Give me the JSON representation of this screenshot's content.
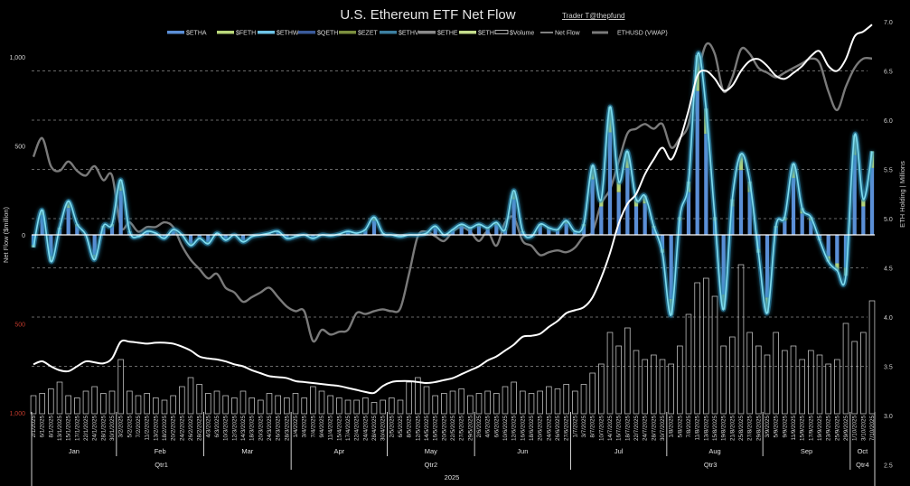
{
  "chart_data": {
    "type": "bar",
    "title": "U.S. Ethereum ETF Net Flow",
    "credit": "Trader T@thepfund",
    "legend": [
      {
        "label": "$ETHA",
        "color": "#5b8fd6",
        "kind": "bar"
      },
      {
        "label": "$FETH",
        "color": "#b9d77a",
        "kind": "bar"
      },
      {
        "label": "$ETHW",
        "color": "#6ec3e6",
        "kind": "bar"
      },
      {
        "label": "$QETH",
        "color": "#3a5a9a",
        "kind": "bar"
      },
      {
        "label": "$EZET",
        "color": "#7b8f3e",
        "kind": "bar"
      },
      {
        "label": "$ETHV",
        "color": "#3d7fa0",
        "kind": "bar"
      },
      {
        "label": "$ETHE",
        "color": "#8a8a8a",
        "kind": "bar"
      },
      {
        "label": "$ETH",
        "color": "#c4dc8c",
        "kind": "bar"
      },
      {
        "label": "$Volume",
        "color": "#dddddd",
        "kind": "hollow"
      },
      {
        "label": "Net Flow",
        "color": "#ffffff",
        "kind": "line"
      },
      {
        "label": "ETHUSD (VWAP)",
        "color": "#7a7a7a",
        "kind": "thickline"
      }
    ],
    "y_left": {
      "label": "Net Flow ($million)",
      "range": [
        -1000,
        1000
      ],
      "ticks": [
        {
          "value": 1000,
          "label": "1,000",
          "negative": false
        },
        {
          "value": 500,
          "label": "500",
          "negative": false
        },
        {
          "value": 0,
          "label": "0",
          "negative": false
        },
        {
          "value": -500,
          "label": "500",
          "negative": true
        },
        {
          "value": -1000,
          "label": "1,000",
          "negative": true
        }
      ]
    },
    "y_right": {
      "label": "ETH Holding | Millions",
      "range": [
        2.5,
        7.0
      ],
      "ticks": [
        "7.0",
        "6.5",
        "6.0",
        "5.5",
        "5.0",
        "4.5",
        "4.0",
        "3.5",
        "3.0",
        "2.5"
      ],
      "gridlines": [
        6.5,
        6.0,
        5.5,
        5.0,
        4.5,
        4.0,
        3.5
      ]
    },
    "colors": {
      "negative_tick": "#c0392b",
      "net_flow_glow": "#7fdcf0",
      "bar_main": "#5b8fd6",
      "bar_secondary": "#b9d77a"
    },
    "year": "2025",
    "months": [
      {
        "name": "Jan",
        "quarter": "Qtr1",
        "dates": [
          "2/1/2025",
          "6/1/2025",
          "8/1/2025",
          "13/1/2025",
          "15/1/2025",
          "17/1/2025",
          "22/1/2025",
          "24/1/2025",
          "28/1/2025",
          "30/1/2025"
        ],
        "net_flow": [
          -70,
          140,
          -150,
          40,
          190,
          60,
          0,
          -140,
          50,
          60
        ],
        "holdings": [
          3.52,
          3.55,
          3.5,
          3.46,
          3.45,
          3.5,
          3.55,
          3.54,
          3.53,
          3.58
        ],
        "ethusd": [
          3450,
          3650,
          3350,
          3300,
          3400,
          3300,
          3250,
          3350,
          3200,
          3250
        ],
        "volume": [
          400,
          450,
          550,
          700,
          400,
          350,
          500,
          600,
          450,
          500
        ]
      },
      {
        "name": "Feb",
        "quarter": "Qtr1",
        "dates": [
          "3/2/2025",
          "5/2/2025",
          "7/2/2025",
          "11/2/2025",
          "13/2/2025",
          "18/2/2025",
          "20/2/2025",
          "24/2/2025",
          "26/2/2025",
          "28/2/2025"
        ],
        "net_flow": [
          310,
          20,
          -10,
          20,
          10,
          -20,
          30,
          0,
          -60,
          -20
        ],
        "holdings": [
          3.75,
          3.75,
          3.74,
          3.73,
          3.74,
          3.74,
          3.73,
          3.7,
          3.66,
          3.6
        ],
        "ethusd": [
          2700,
          2750,
          2650,
          2700,
          2700,
          2750,
          2700,
          2500,
          2350,
          2250
        ],
        "volume": [
          1200,
          500,
          400,
          450,
          350,
          300,
          400,
          600,
          800,
          650
        ]
      },
      {
        "name": "Mar",
        "quarter": "Qtr1",
        "dates": [
          "4/3/2025",
          "6/3/2025",
          "10/3/2025",
          "12/3/2025",
          "14/3/2025",
          "18/3/2025",
          "20/3/2025",
          "24/3/2025",
          "26/3/2025",
          "28/3/2025"
        ],
        "net_flow": [
          -50,
          10,
          -30,
          0,
          -40,
          -10,
          0,
          10,
          20,
          -20
        ],
        "holdings": [
          3.58,
          3.57,
          3.55,
          3.52,
          3.5,
          3.46,
          3.43,
          3.4,
          3.39,
          3.38
        ],
        "ethusd": [
          2150,
          2200,
          2050,
          2000,
          1900,
          1950,
          2000,
          2050,
          1950,
          1850
        ],
        "volume": [
          450,
          500,
          400,
          350,
          500,
          350,
          300,
          450,
          400,
          350
        ]
      },
      {
        "name": "Apr",
        "quarter": "Qtr2",
        "dates": [
          "1/4/2025",
          "3/4/2025",
          "7/4/2025",
          "9/4/2025",
          "11/4/2025",
          "15/4/2025",
          "17/4/2025",
          "22/4/2025",
          "24/4/2025",
          "28/4/2025",
          "30/4/2025"
        ],
        "net_flow": [
          -10,
          0,
          -20,
          0,
          -5,
          5,
          20,
          10,
          30,
          100,
          10
        ],
        "holdings": [
          3.35,
          3.34,
          3.33,
          3.32,
          3.31,
          3.3,
          3.28,
          3.26,
          3.24,
          3.23,
          3.3
        ],
        "ethusd": [
          1800,
          1800,
          1480,
          1600,
          1550,
          1580,
          1600,
          1780,
          1770,
          1800,
          1820
        ],
        "volume": [
          450,
          350,
          600,
          500,
          400,
          350,
          300,
          300,
          350,
          250,
          300
        ]
      },
      {
        "name": "May",
        "quarter": "Qtr2",
        "dates": [
          "2/5/2025",
          "6/5/2025",
          "8/5/2025",
          "12/5/2025",
          "14/5/2025",
          "16/5/2025",
          "20/5/2025",
          "22/5/2025",
          "27/5/2025",
          "29/5/2025"
        ],
        "net_flow": [
          0,
          -10,
          0,
          0,
          10,
          50,
          0,
          30,
          60,
          40
        ],
        "holdings": [
          3.34,
          3.35,
          3.35,
          3.34,
          3.33,
          3.34,
          3.36,
          3.38,
          3.42,
          3.46
        ],
        "ethusd": [
          1800,
          1830,
          2200,
          2600,
          2650,
          2600,
          2550,
          2650,
          2700,
          2650
        ],
        "volume": [
          350,
          300,
          700,
          800,
          600,
          400,
          450,
          500,
          550,
          400
        ]
      },
      {
        "name": "Jun",
        "quarter": "Qtr2",
        "dates": [
          "2/6/2025",
          "4/6/2025",
          "6/6/2025",
          "10/6/2025",
          "12/6/2025",
          "16/6/2025",
          "18/6/2025",
          "20/6/2025",
          "24/6/2025",
          "26/6/2025",
          "27/6/2025"
        ],
        "net_flow": [
          60,
          40,
          70,
          30,
          250,
          20,
          -10,
          60,
          40,
          30,
          80
        ],
        "holdings": [
          3.5,
          3.56,
          3.6,
          3.66,
          3.72,
          3.8,
          3.81,
          3.83,
          3.9,
          3.96,
          4.04
        ],
        "ethusd": [
          2550,
          2650,
          2500,
          2750,
          2800,
          2550,
          2500,
          2400,
          2430,
          2450,
          2430
        ],
        "volume": [
          450,
          500,
          450,
          600,
          700,
          500,
          450,
          500,
          600,
          550,
          650
        ]
      },
      {
        "name": "Jul",
        "quarter": "Qtr3",
        "dates": [
          "1/7/2025",
          "3/7/2025",
          "8/7/2025",
          "10/7/2025",
          "14/7/2025",
          "16/7/2025",
          "18/7/2025",
          "22/7/2025",
          "24/7/2025",
          "28/7/2025",
          "30/7/2025"
        ],
        "net_flow": [
          20,
          60,
          390,
          200,
          720,
          300,
          470,
          200,
          220,
          50,
          -100
        ],
        "holdings": [
          4.07,
          4.1,
          4.2,
          4.4,
          4.65,
          4.95,
          5.15,
          5.25,
          5.45,
          5.6,
          5.72
        ],
        "ethusd": [
          2480,
          2600,
          2650,
          2950,
          3100,
          3400,
          3700,
          3750,
          3800,
          3750,
          3800
        ],
        "volume": [
          500,
          650,
          900,
          1100,
          1800,
          1500,
          1900,
          1400,
          1200,
          1300,
          1200
        ]
      },
      {
        "name": "Aug",
        "quarter": "Qtr3",
        "dates": [
          "1/8/2025",
          "5/8/2025",
          "7/8/2025",
          "11/8/2025",
          "13/8/2025",
          "15/8/2025",
          "19/8/2025",
          "21/8/2025",
          "25/8/2025",
          "27/8/2025",
          "29/8/2025"
        ],
        "net_flow": [
          -450,
          100,
          300,
          1010,
          710,
          100,
          -420,
          200,
          455,
          300,
          -100
        ],
        "holdings": [
          5.6,
          5.8,
          6.1,
          6.45,
          6.5,
          6.42,
          6.3,
          6.35,
          6.5,
          6.6,
          6.62
        ],
        "ethusd": [
          3550,
          3650,
          3800,
          4300,
          4650,
          4550,
          4150,
          4300,
          4600,
          4550,
          4400
        ],
        "volume": [
          1100,
          1500,
          2200,
          2900,
          3000,
          2600,
          1500,
          1700,
          3300,
          1800,
          1500
        ]
      },
      {
        "name": "Sep",
        "quarter": "Qtr3",
        "dates": [
          "3/9/2025",
          "5/9/2025",
          "9/9/2025",
          "11/9/2025",
          "15/9/2025",
          "17/9/2025",
          "19/9/2025",
          "23/9/2025",
          "25/9/2025",
          "29/9/2025"
        ],
        "net_flow": [
          -440,
          50,
          100,
          400,
          150,
          100,
          -30,
          -150,
          -200,
          -230
        ],
        "holdings": [
          6.55,
          6.45,
          6.42,
          6.48,
          6.55,
          6.65,
          6.7,
          6.55,
          6.5,
          6.62
        ],
        "ethusd": [
          4350,
          4300,
          4350,
          4400,
          4450,
          4500,
          4450,
          4150,
          3950,
          4200
        ],
        "volume": [
          1300,
          1800,
          1400,
          1500,
          1200,
          1400,
          1300,
          1100,
          1200,
          2000
        ]
      },
      {
        "name": "Oct",
        "quarter": "Qtr4",
        "dates": [
          "1/10/2025",
          "3/10/2025",
          "7/10/2025"
        ],
        "net_flow": [
          560,
          200,
          470
        ],
        "holdings": [
          6.85,
          6.9,
          6.97
        ],
        "ethusd": [
          4400,
          4500,
          4500
        ],
        "volume": [
          1600,
          1800,
          2500
        ]
      }
    ]
  }
}
